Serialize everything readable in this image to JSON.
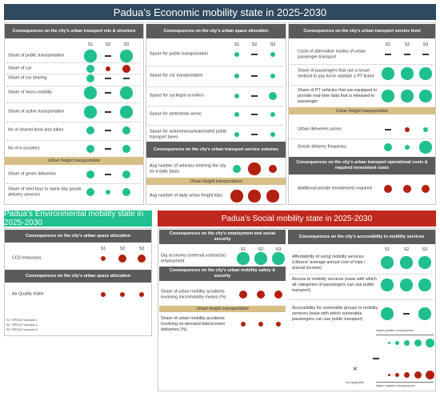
{
  "economic": {
    "title": "Padua’s Economic mobility state in 2025-2030",
    "transport_mix": {
      "header": "Consequences on the city’s urban transport mix & structure",
      "columns": [
        "S1",
        "S2",
        "S3"
      ],
      "rows": [
        "Share of public transportation",
        "Share of car",
        "Share of car sharing",
        "Share of micro-mobility",
        "Share of active transportation",
        "No of shared dock-less bikes",
        "No of e-scooters"
      ],
      "freight_heading": "Urban freight transportation",
      "freight_rows": [
        "Share of green deliveries",
        "Share of next hour to same day goods delivery services"
      ]
    },
    "space_allocation": {
      "header": "Consequences on the city’s urban space allocation",
      "columns": [
        "S1",
        "S2",
        "S3"
      ],
      "rows": [
        "Space for public transportation",
        "Space for car transportation",
        "Space for cycling/e-scooters",
        "Space for pedestrian areas",
        "Space for autonomous/automated public transport lanes"
      ]
    },
    "service_volumes": {
      "header": "Consequences on the city’s urban transport service volumes",
      "rows": [
        "Avg number of vehicles entering the city on a daily basis"
      ],
      "freight_heading": "Urban freight transportation",
      "freight_rows": [
        "Avg number of daily urban freight trips"
      ]
    },
    "service_level": {
      "header": "Consequences on the city’s urban transport service level",
      "columns": [
        "S1",
        "S2",
        "S3"
      ],
      "rows": [
        "Costs of alternative modes of urban passenger transport",
        "Share of passengers that use a smart method to pay for/or validate a PT ticket",
        "Share of PT vehicles that are equipped to provide real-time data that is released to passenger"
      ],
      "freight_heading": "Urban freight transportation",
      "freight_rows": [
        "Urban deliveries prices",
        "Goods delivery frequency"
      ]
    },
    "costs": {
      "header": "Consequences on the city’s urban transport operational costs & required investment costs",
      "rows": [
        "Additional private investments required"
      ]
    }
  },
  "environmental": {
    "title": "Padua’s Environmental mobility state in 2025-2030",
    "space_allocation": {
      "header": "Consequences on the city’s urban space allocation",
      "columns": [
        "S1",
        "S2",
        "S3"
      ],
      "rows": [
        "CO2 emissions"
      ]
    },
    "air_quality": {
      "header": "Consequences on the city’s urban space allocation",
      "rows": [
        "Air Quality Index"
      ]
    },
    "notes": [
      "S1: SPROUT scenario 1",
      "S2: SPROUT scenario 2",
      "S3: SPROUT scenario 3"
    ]
  },
  "social": {
    "title": "Padua’s Social mobility state in 2025-2030",
    "employment": {
      "header": "Consequences on the city’s employment and social security",
      "columns": [
        "S1",
        "S2",
        "S3"
      ],
      "rows": [
        "Gig economy (external contractor) employment"
      ]
    },
    "safety": {
      "header": "Consequences on the city’s urban mobility safety & security",
      "rows": [
        "Share of urban mobility accidents involving micromobility means (%)"
      ],
      "freight_heading": "Urban freight transportation",
      "freight_rows": [
        "Share of urban mobility accidents involving on-demand bike/scooter deliveries (%)"
      ]
    },
    "accessibility": {
      "header": "Consequences on the city’s accessibility to mobility services",
      "columns": [
        "S1",
        "S2",
        "S3"
      ],
      "rows": [
        "Affordability of using mobility services (citizens’ average annual cost of trips / annual income)",
        "Access to mobility services (ease with which all categories of passengers can use public transport)",
        "Accessibility for vulnerable groups to mobility services (ease with which vulnerable passengers can use public transport)"
      ]
    }
  },
  "legend": {
    "positive": "higher positive consequences",
    "negative": "higher negative consequences",
    "not_applicable": "Not applicable"
  }
}
